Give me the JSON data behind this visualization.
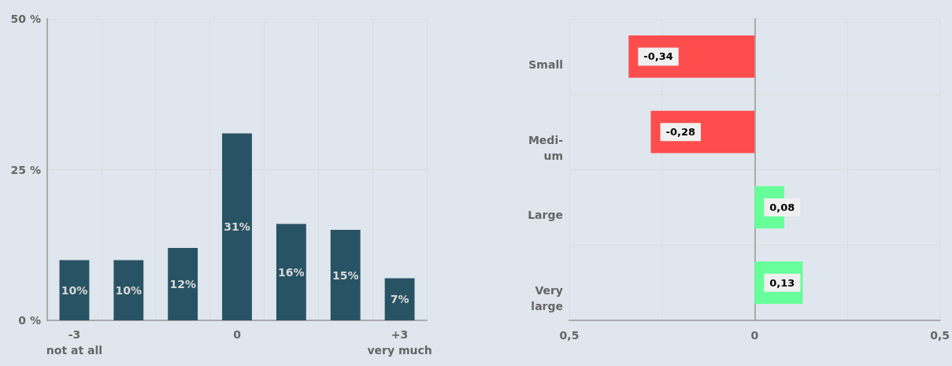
{
  "chart_data": [
    {
      "type": "bar",
      "categories": [
        "-3\nnot at all",
        null,
        null,
        "0",
        null,
        null,
        "+3\nvery much"
      ],
      "values": [
        10,
        10,
        12,
        31,
        16,
        15,
        7
      ],
      "value_labels": [
        "10%",
        "10%",
        "12%",
        "31%",
        "16%",
        "15%",
        "7%"
      ],
      "color": "#285364",
      "ylim": [
        0,
        50
      ],
      "yticks": [
        {
          "value": 0,
          "label": "0 %"
        },
        {
          "value": 25,
          "label": "25 %"
        },
        {
          "value": 50,
          "label": "50 %"
        }
      ],
      "grid": true
    },
    {
      "type": "bar",
      "orientation": "horizontal",
      "categories": [
        "Small",
        "Medi-\num",
        "Large",
        "Very\nlarge"
      ],
      "values": [
        -0.34,
        -0.28,
        0.08,
        0.13
      ],
      "value_labels": [
        "-0,34",
        "-0,28",
        "0,08",
        "0,13"
      ],
      "colors": [
        "#ff4d4d",
        "#ff4d4d",
        "#66ff99",
        "#66ff99"
      ],
      "xlim": [
        -0.5,
        0.5
      ],
      "xticks": [
        {
          "value": -0.5,
          "label": "0,5"
        },
        {
          "value": -0.25,
          "label": null
        },
        {
          "value": 0,
          "label": "0"
        },
        {
          "value": 0.25,
          "label": null
        },
        {
          "value": 0.5,
          "label": "0,5"
        }
      ],
      "grid": true
    }
  ]
}
